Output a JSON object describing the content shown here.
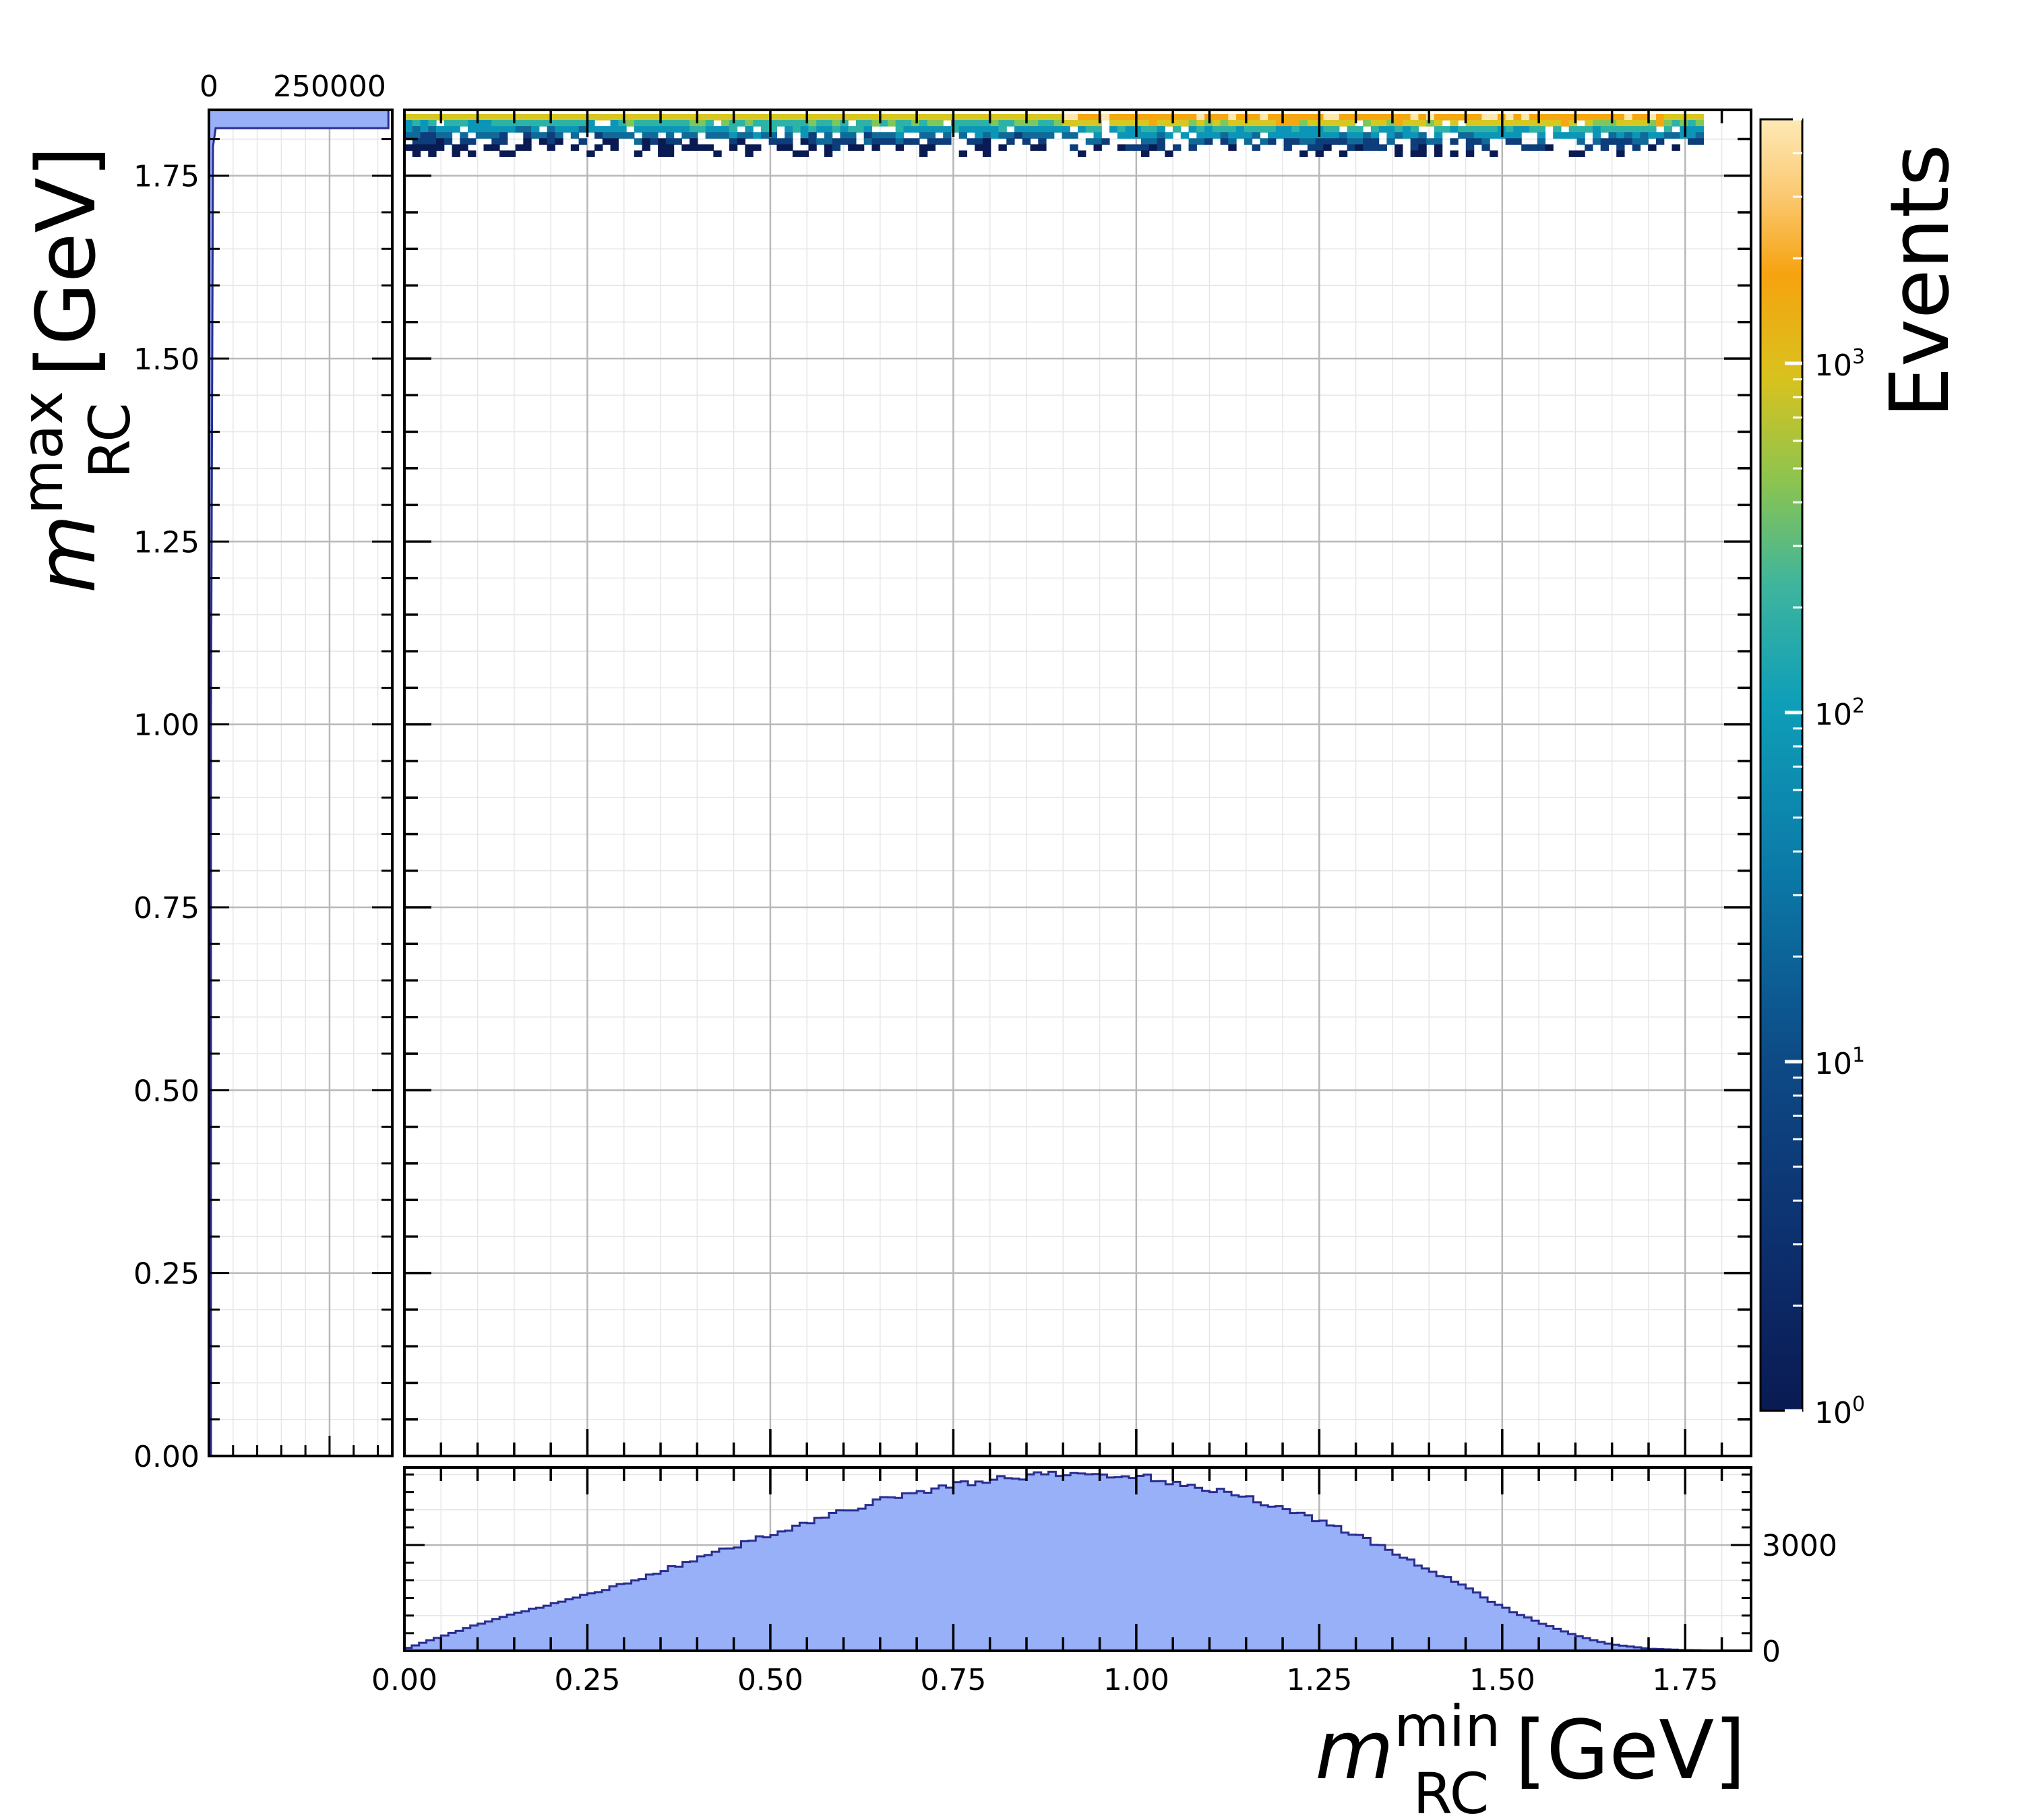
{
  "chart_data": [
    {
      "type": "heatmap",
      "panel": "main",
      "xlabel_main": "m",
      "xlabel_sub": "RC",
      "xlabel_sup": "min",
      "xlabel_unit": " [GeV]",
      "ylabel_main": "m",
      "ylabel_sub": "RC",
      "ylabel_sup": "max",
      "ylabel_unit": " [GeV]",
      "xlim": [
        0,
        1.84
      ],
      "ylim": [
        0,
        1.84
      ],
      "x_ticks": [
        "0.00",
        "0.25",
        "0.50",
        "0.75",
        "1.00",
        "1.25",
        "1.50",
        "1.75"
      ],
      "y_ticks": [
        "0.00",
        "0.25",
        "0.50",
        "0.75",
        "1.00",
        "1.25",
        "1.50",
        "1.75"
      ],
      "occupied_band_y": [
        1.78,
        1.84
      ],
      "occupied_band_x": [
        0.0,
        1.77
      ],
      "peak_region_x": [
        0.9,
        1.72
      ],
      "grid": true,
      "colorbar": {
        "label": "Events",
        "scale": "log",
        "range": [
          1,
          5000
        ],
        "ticks": [
          {
            "base": "10",
            "exp": "0",
            "value": 1
          },
          {
            "base": "10",
            "exp": "1",
            "value": 10
          },
          {
            "base": "10",
            "exp": "2",
            "value": 100
          },
          {
            "base": "10",
            "exp": "3",
            "value": 1000
          }
        ],
        "colors": [
          "#0a1a52",
          "#0d3d7a",
          "#0f6a99",
          "#0b96b8",
          "#2db3a6",
          "#7fc75a",
          "#d7c720",
          "#f5a712",
          "#fde8b0"
        ]
      }
    },
    {
      "type": "area",
      "panel": "bottom-marginal",
      "xlim": [
        0,
        1.84
      ],
      "ylim": [
        0,
        5200
      ],
      "y_ticks": [
        "0",
        "3000"
      ],
      "x": [
        0.0,
        0.05,
        0.1,
        0.15,
        0.2,
        0.25,
        0.3,
        0.35,
        0.4,
        0.45,
        0.5,
        0.55,
        0.6,
        0.65,
        0.7,
        0.75,
        0.8,
        0.85,
        0.9,
        0.95,
        1.0,
        1.05,
        1.1,
        1.15,
        1.2,
        1.25,
        1.3,
        1.35,
        1.4,
        1.45,
        1.5,
        1.55,
        1.6,
        1.65,
        1.7,
        1.75,
        1.8
      ],
      "values": [
        50,
        400,
        750,
        1050,
        1300,
        1600,
        1900,
        2250,
        2600,
        2950,
        3300,
        3650,
        3950,
        4250,
        4500,
        4700,
        4850,
        4950,
        5000,
        5000,
        4950,
        4800,
        4600,
        4350,
        4050,
        3700,
        3300,
        2800,
        2300,
        1800,
        1250,
        800,
        430,
        180,
        60,
        20,
        5
      ],
      "fill_color": "#98b0f8",
      "line_color": "#2a2d8f"
    },
    {
      "type": "area",
      "panel": "left-marginal",
      "xlim": [
        0,
        380000
      ],
      "x_ticks": [
        "0",
        "250000"
      ],
      "ylim": [
        0,
        1.84
      ],
      "fill_color": "#98b0f8",
      "line_color": "#2a2d8f"
    }
  ]
}
